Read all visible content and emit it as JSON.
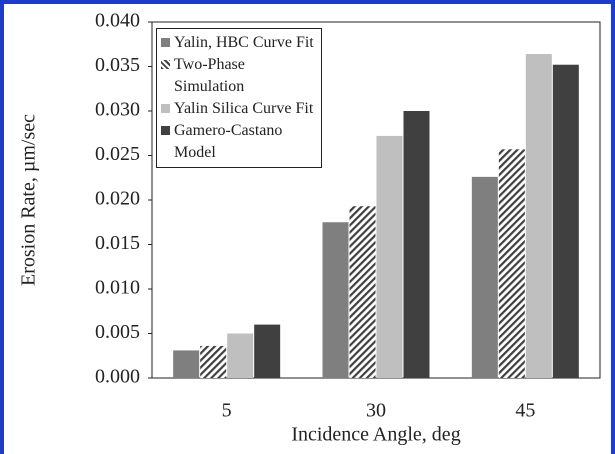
{
  "chart_data": {
    "type": "bar",
    "y_label": "Erosion Rate, µm/sec",
    "x_label": "Incidence Angle, deg",
    "categories": [
      "5",
      "30",
      "45"
    ],
    "series": [
      {
        "name": "Yalin, HBC Curve Fit",
        "color": "#7f7f7f",
        "values": [
          0.0031,
          0.0175,
          0.0226
        ]
      },
      {
        "name": "Two-Phase Simulation",
        "color": "#404040",
        "hatch": true,
        "values": [
          0.0036,
          0.0193,
          0.0257
        ]
      },
      {
        "name": "Yalin Silica Curve Fit",
        "color": "#bfbfbf",
        "values": [
          0.005,
          0.0272,
          0.0364
        ]
      },
      {
        "name": "Gamero-Castano Model",
        "color": "#404040",
        "values": [
          0.006,
          0.03,
          0.0352
        ]
      }
    ],
    "ylim": [
      0,
      0.04
    ],
    "yticks": [
      {
        "value": 0,
        "label": "0.000"
      },
      {
        "value": 0.005,
        "label": "0.005"
      },
      {
        "value": 0.01,
        "label": "0.010"
      },
      {
        "value": 0.015,
        "label": "0.015"
      },
      {
        "value": 0.02,
        "label": "0.020"
      },
      {
        "value": 0.025,
        "label": "0.025"
      },
      {
        "value": 0.03,
        "label": "0.030"
      },
      {
        "value": 0.035,
        "label": "0.035"
      },
      {
        "value": 0.04,
        "label": "0.040"
      }
    ],
    "legend": "upper-left"
  }
}
